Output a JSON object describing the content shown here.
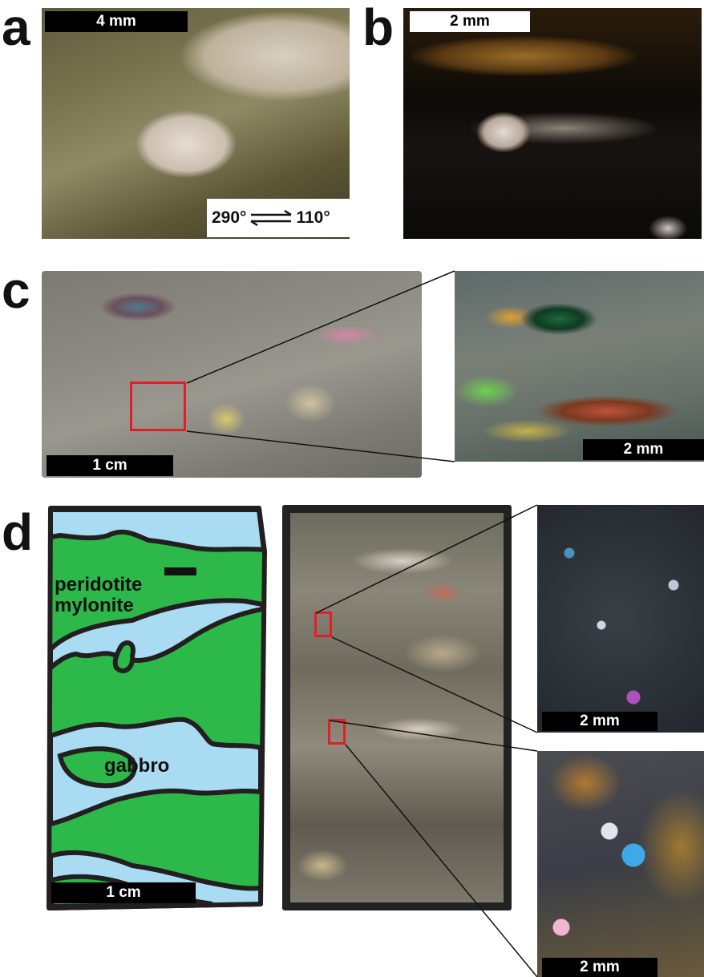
{
  "panels": {
    "a": {
      "letter": "a",
      "scale": "4 mm",
      "shear": {
        "left": "290°",
        "right": "110°"
      }
    },
    "b": {
      "letter": "b",
      "scale": "2 mm"
    },
    "c": {
      "letter": "c",
      "scale_main": "1 cm",
      "scale_inset": "2 mm"
    },
    "d": {
      "letter": "d",
      "map_labels": {
        "peridotite_line1": "peridotite",
        "peridotite_line2": "mylonite",
        "gabbro": "gabbro"
      },
      "scale_map": "1 cm",
      "scale_inset_top": "2 mm",
      "scale_inset_bottom": "2 mm"
    }
  },
  "colors": {
    "peridotite_green": "#2db84a",
    "gabbro_blue": "#a9dcf3",
    "outline": "#231f20",
    "highlight_box": "#e41e26"
  }
}
